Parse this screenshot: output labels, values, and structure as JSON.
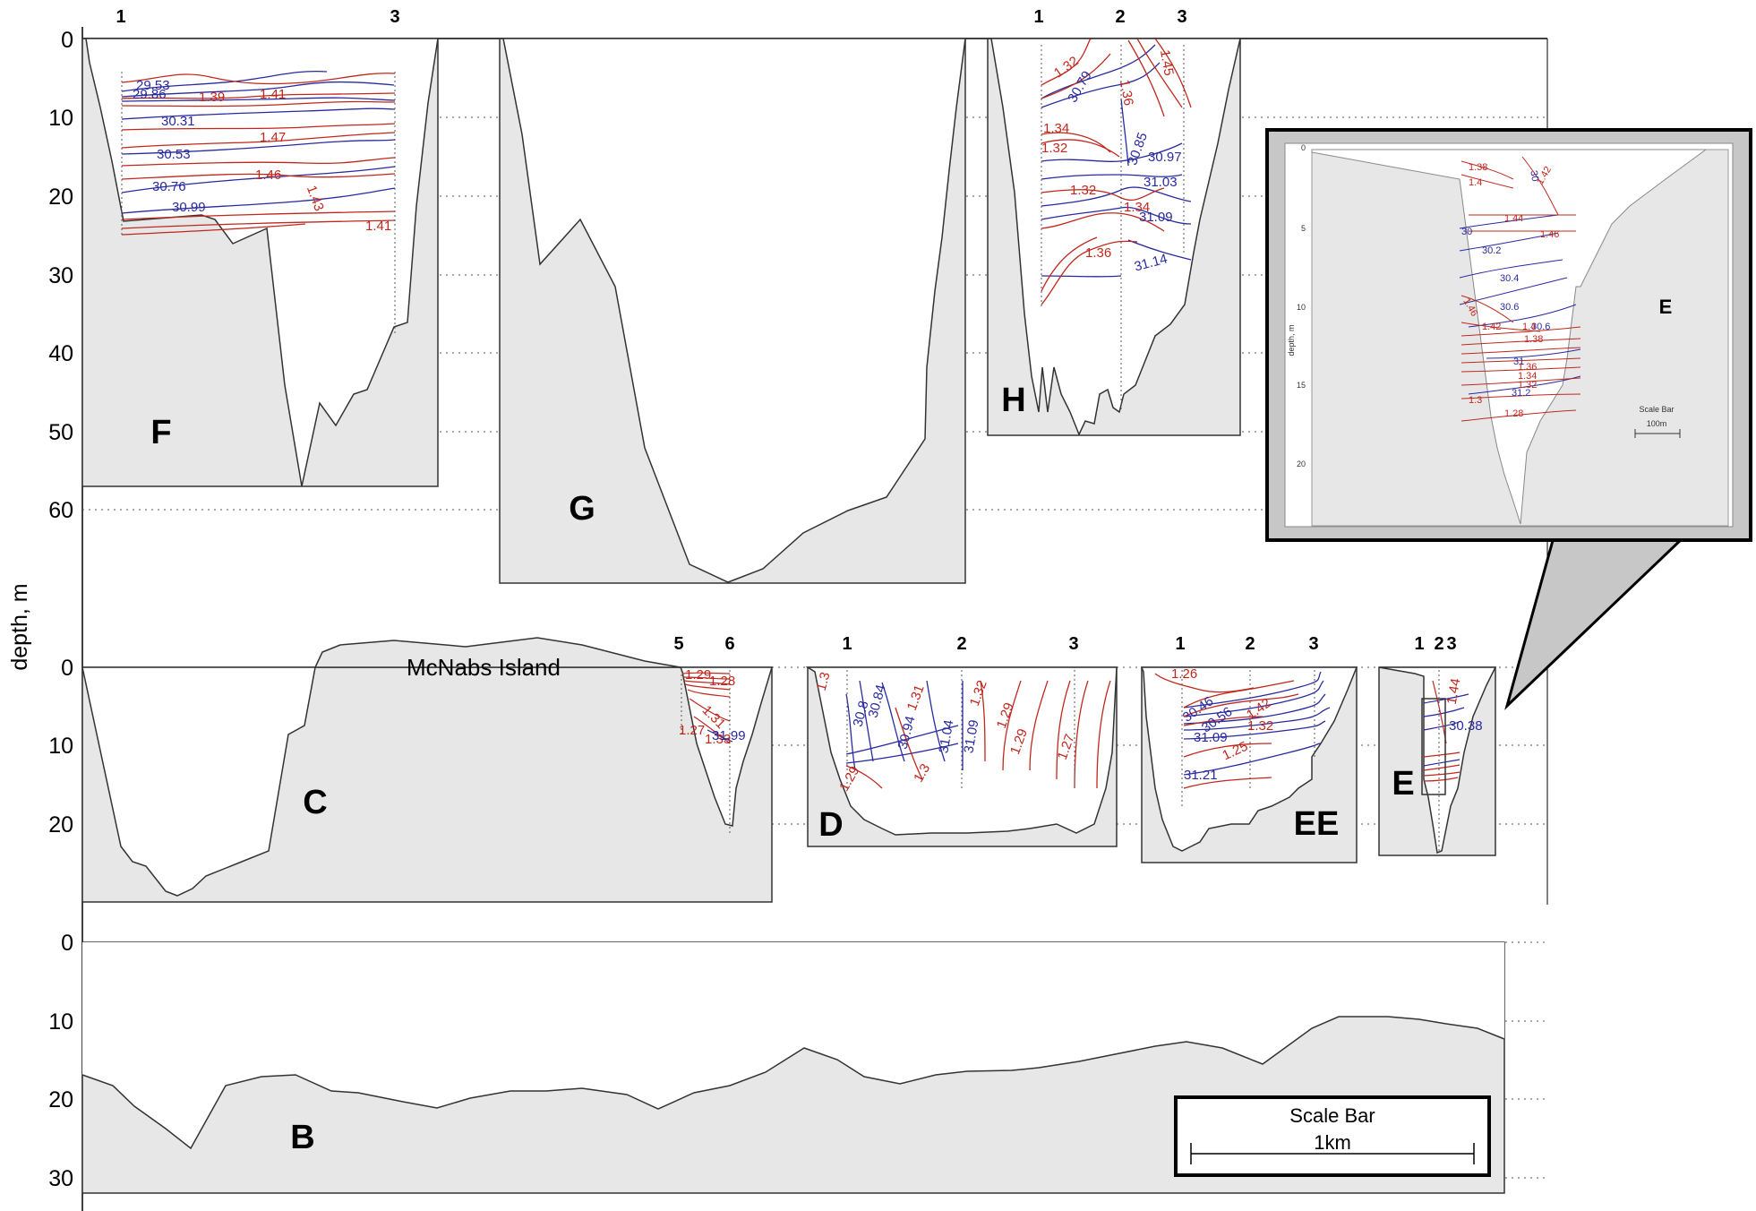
{
  "chart_data": [
    {
      "type": "area",
      "ylabel": "depth, m",
      "yticks": [
        "0",
        "10",
        "20",
        "30",
        "40",
        "50",
        "60"
      ],
      "ylim": [
        0,
        60
      ],
      "grid": true,
      "panels": [
        {
          "id": "F",
          "stations": [
            "1",
            "3"
          ],
          "salinity": [
            "29.53",
            "29.86",
            "30.31",
            "30.53",
            "30.76",
            "30.99"
          ],
          "density": [
            "1.41",
            "1.39",
            "1.47",
            "1.46",
            "1.43",
            "1.41"
          ],
          "max_depth_m": 57
        },
        {
          "id": "G",
          "stations": [],
          "max_depth_m": 69
        },
        {
          "id": "H",
          "stations": [
            "1",
            "2",
            "3"
          ],
          "salinity": [
            "30.79",
            "30.85",
            "30.97",
            "31.03",
            "31.09",
            "31.14"
          ],
          "density": [
            "1.32",
            "1.36",
            "1.45",
            "1.34",
            "1.32",
            "1.32",
            "1.34",
            "1.36"
          ],
          "max_depth_m": 50
        }
      ]
    },
    {
      "type": "area",
      "ylabel": "depth, m",
      "yticks": [
        "0",
        "10",
        "20"
      ],
      "grid": true,
      "panels": [
        {
          "id": "C",
          "stations": [
            "5",
            "6"
          ],
          "annotation": "McNabs Island",
          "salinity": [
            "31.99"
          ],
          "density": [
            "1.29",
            "1.28",
            "1.31",
            "1.27",
            "1.33"
          ],
          "max_depth_m": 29
        },
        {
          "id": "D",
          "stations": [
            "1",
            "2",
            "3"
          ],
          "salinity": [
            "30.8",
            "30.84",
            "30.94",
            "31.04",
            "31.09"
          ],
          "density": [
            "1.3",
            "1.31",
            "1.32",
            "1.29",
            "1.29",
            "1.27",
            "1.3",
            "1.29"
          ],
          "max_depth_m": 23
        },
        {
          "id": "EE",
          "stations": [
            "1",
            "2",
            "3"
          ],
          "salinity": [
            "30.46",
            "30.56",
            "31.09",
            "31.21"
          ],
          "density": [
            "1.26",
            "1.42",
            "1.32",
            "1.25"
          ],
          "max_depth_m": 24
        },
        {
          "id": "E",
          "stations": [
            "1",
            "2",
            "3"
          ],
          "salinity": [
            "30.38"
          ],
          "density": [
            "1.44"
          ],
          "max_depth_m": 24
        }
      ]
    },
    {
      "type": "area",
      "ylabel": "depth, m",
      "yticks": [
        "0",
        "10",
        "20",
        "30"
      ],
      "grid": true,
      "panels": [
        {
          "id": "B",
          "stations": [],
          "max_depth_m": 32
        }
      ],
      "scale_bar": {
        "title": "Scale Bar",
        "length": "1km"
      }
    },
    {
      "type": "area",
      "inset_of": "E",
      "ylabel": "depth, m",
      "yticks": [
        "0",
        "5",
        "10",
        "15",
        "20"
      ],
      "salinity": [
        "30",
        "30",
        "30.2",
        "30.4",
        "30.6",
        "30.6",
        "31",
        "31.2"
      ],
      "density": [
        "1.38",
        "1.4",
        "1.42",
        "1.44",
        "1.46",
        "1.46",
        "1.42",
        "1.4",
        "1.38",
        "1.36",
        "1.34",
        "1.32",
        "1.3",
        "1.28"
      ],
      "label": "E",
      "scale_bar": {
        "title": "Scale Bar",
        "length": "100m"
      }
    }
  ]
}
